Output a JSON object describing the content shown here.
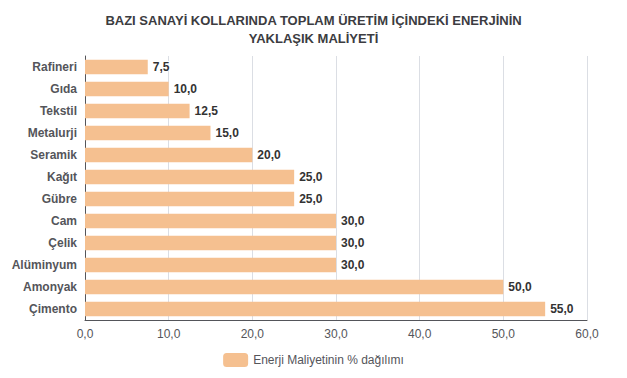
{
  "chart_data": {
    "type": "bar",
    "orientation": "horizontal",
    "title": "BAZI SANAYİ KOLLARINDA TOPLAM ÜRETİM İÇİNDEKİ ENERJİNİN\nYAKLAŞIK MALİYETİ",
    "categories": [
      "Rafineri",
      "Gıda",
      "Tekstil",
      "Metalurji",
      "Seramik",
      "Kağıt",
      "Gübre",
      "Cam",
      "Çelik",
      "Alüminyum",
      "Amonyak",
      "Çimento"
    ],
    "series": [
      {
        "name": "Enerji Maliyetinin % dağılımı",
        "color": "#F5C090",
        "values": [
          7.5,
          10.0,
          12.5,
          15.0,
          20.0,
          25.0,
          25.0,
          30.0,
          30.0,
          30.0,
          50.0,
          55.0
        ],
        "value_labels": [
          "7,5",
          "10,0",
          "12,5",
          "15,0",
          "20,0",
          "25,0",
          "25,0",
          "30,0",
          "30,0",
          "30,0",
          "50,0",
          "55,0"
        ]
      }
    ],
    "xlim": [
      0,
      60
    ],
    "xticks": [
      {
        "value": 0,
        "label": "0,0"
      },
      {
        "value": 10,
        "label": "10,0"
      },
      {
        "value": 20,
        "label": "20,0"
      },
      {
        "value": 30,
        "label": "30,0"
      },
      {
        "value": 40,
        "label": "40,0"
      },
      {
        "value": 50,
        "label": "50,0"
      },
      {
        "value": 60,
        "label": "60,0"
      }
    ],
    "grid": true,
    "legend": "bottom",
    "data_labels": true
  }
}
